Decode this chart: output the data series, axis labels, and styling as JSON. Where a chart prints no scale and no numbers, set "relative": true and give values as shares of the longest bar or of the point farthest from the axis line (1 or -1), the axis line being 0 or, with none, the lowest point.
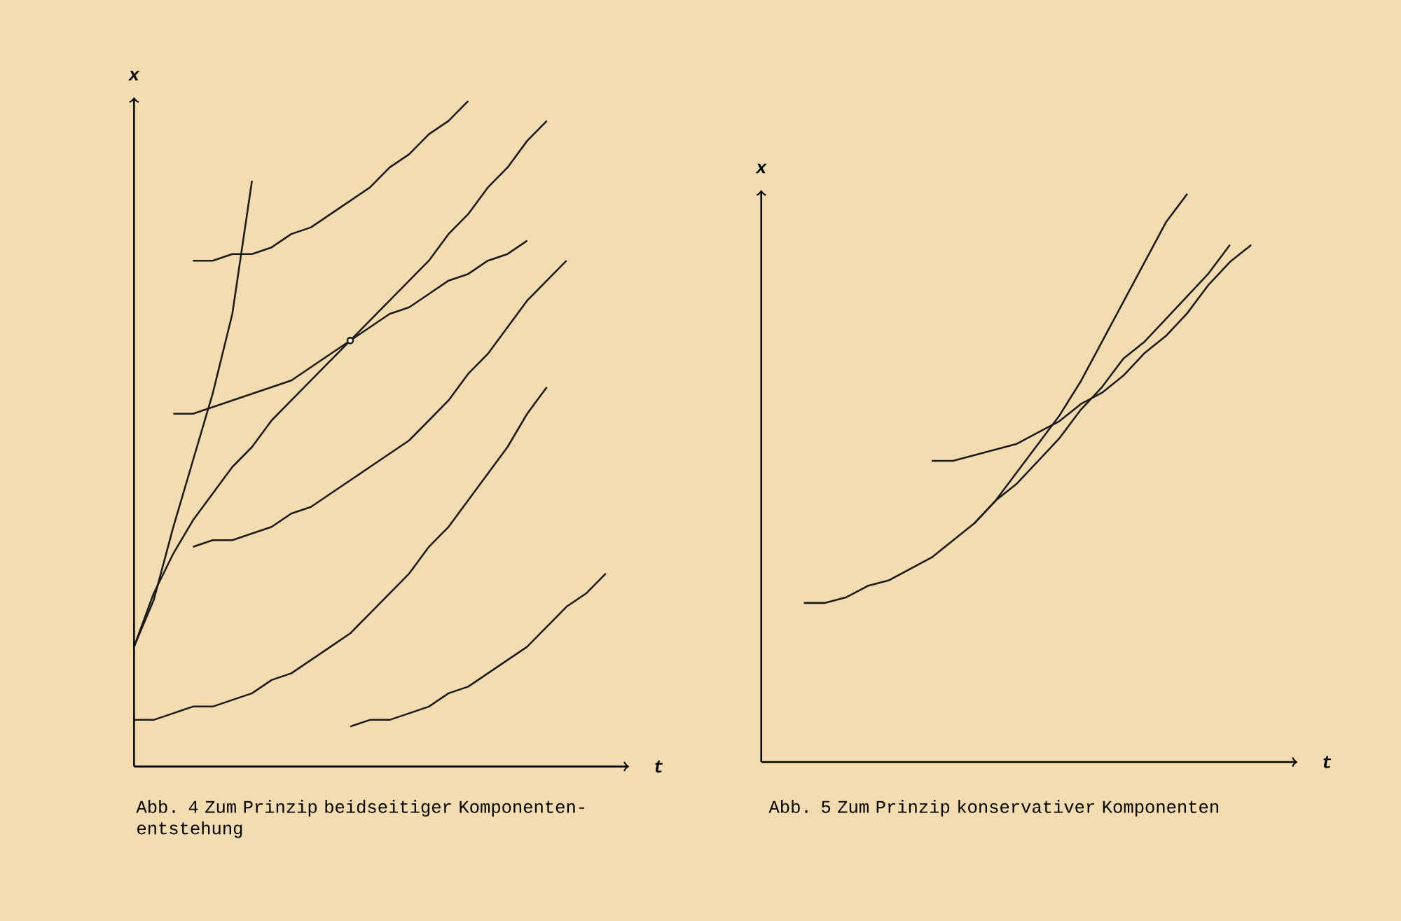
{
  "chart_data": [
    {
      "type": "line",
      "relative": true,
      "xlabel": "t",
      "ylabel": "x",
      "line_style": "solid",
      "annotations": [
        "Abb. 4  Zum Prinzip beidseitiger Komponenten-entstehung"
      ],
      "categories": [
        null,
        null,
        null,
        null,
        null,
        null,
        null,
        null,
        null,
        null,
        null,
        null,
        null,
        null,
        null,
        null,
        null,
        null,
        null,
        null,
        null,
        null,
        null,
        null,
        null,
        null
      ],
      "series": [
        {
          "color": "#1a1a1a",
          "values": [
            null,
            null,
            null,
            0.76,
            0.76,
            0.77,
            0.77,
            0.78,
            0.8,
            0.81,
            0.83,
            0.85,
            0.87,
            0.9,
            0.92,
            0.95,
            0.97,
            1.0,
            null,
            null,
            null,
            null,
            null,
            null,
            null,
            null
          ]
        },
        {
          "color": "#1a1a1a",
          "values": [
            0.18,
            0.25,
            0.36,
            0.46,
            0.56,
            0.68,
            0.88,
            null,
            null,
            null,
            null,
            null,
            null,
            null,
            null,
            null,
            null,
            null,
            null,
            null,
            null,
            null,
            null,
            null,
            null,
            null
          ]
        },
        {
          "color": "#1a1a1a",
          "values": [
            0.18,
            0.26,
            0.32,
            0.37,
            0.41,
            0.45,
            0.48,
            0.52,
            0.55,
            0.58,
            0.61,
            0.64,
            0.67,
            0.7,
            0.73,
            0.76,
            0.8,
            0.83,
            0.87,
            0.9,
            0.94,
            0.97,
            null,
            null,
            null,
            null
          ]
        },
        {
          "color": "#1a1a1a",
          "values": [
            null,
            null,
            0.53,
            0.53,
            0.54,
            0.55,
            0.56,
            0.57,
            0.58,
            0.6,
            0.62,
            0.64,
            0.66,
            0.68,
            0.69,
            0.71,
            0.73,
            0.74,
            0.76,
            0.77,
            0.79,
            null,
            null,
            null,
            null,
            null
          ]
        },
        {
          "marker": "circle",
          "color": "#1a1a1a",
          "values": [
            null,
            null,
            null,
            null,
            null,
            null,
            null,
            null,
            null,
            null,
            null,
            0.64,
            null,
            null,
            null,
            null,
            null,
            null,
            null,
            null,
            null,
            null,
            null,
            null,
            null,
            null
          ]
        },
        {
          "color": "#1a1a1a",
          "values": [
            null,
            null,
            null,
            0.33,
            0.34,
            0.34,
            0.35,
            0.36,
            0.38,
            0.39,
            0.41,
            0.43,
            0.45,
            0.47,
            0.49,
            0.52,
            0.55,
            0.59,
            0.62,
            0.66,
            0.7,
            0.73,
            0.76,
            null,
            null,
            null
          ]
        },
        {
          "color": "#1a1a1a",
          "values": [
            0.07,
            0.07,
            0.08,
            0.09,
            0.09,
            0.1,
            0.11,
            0.13,
            0.14,
            0.16,
            0.18,
            0.2,
            0.23,
            0.26,
            0.29,
            0.33,
            0.36,
            0.4,
            0.44,
            0.48,
            0.53,
            0.57,
            null,
            null,
            null,
            null
          ]
        },
        {
          "color": "#1a1a1a",
          "values": [
            null,
            null,
            null,
            null,
            null,
            null,
            null,
            null,
            null,
            null,
            null,
            0.06,
            0.07,
            0.07,
            0.08,
            0.09,
            0.11,
            0.12,
            0.14,
            0.16,
            0.18,
            0.21,
            0.24,
            0.26,
            0.29,
            null
          ]
        }
      ]
    },
    {
      "type": "line",
      "relative": true,
      "xlabel": "t",
      "ylabel": "x",
      "line_style": "solid",
      "annotations": [
        "Abb. 5  Zum Prinzip konservativer Komponenten"
      ],
      "categories": [
        null,
        null,
        null,
        null,
        null,
        null,
        null,
        null,
        null,
        null,
        null,
        null,
        null,
        null,
        null,
        null,
        null,
        null,
        null,
        null,
        null,
        null,
        null,
        null,
        null,
        null
      ],
      "series": [
        {
          "color": "#1a1a1a",
          "values": [
            null,
            null,
            0.28,
            0.28,
            0.29,
            0.31,
            0.32,
            0.34,
            0.36,
            0.39,
            0.42,
            0.46,
            0.49,
            0.53,
            0.57,
            0.62,
            0.66,
            0.71,
            0.74,
            0.78,
            0.82,
            0.86,
            0.91,
            null,
            null,
            null
          ]
        },
        {
          "color": "#1a1a1a",
          "values": [
            null,
            null,
            null,
            null,
            null,
            null,
            null,
            null,
            0.53,
            0.53,
            0.54,
            0.55,
            0.56,
            0.58,
            0.6,
            0.63,
            0.65,
            0.68,
            0.72,
            0.75,
            0.79,
            0.84,
            0.88,
            0.91,
            null,
            null
          ]
        },
        {
          "color": "#1a1a1a",
          "values": [
            null,
            null,
            null,
            null,
            null,
            null,
            null,
            null,
            null,
            null,
            0.42,
            0.46,
            0.51,
            0.56,
            0.61,
            0.67,
            0.74,
            0.81,
            0.88,
            0.95,
            1.0,
            null,
            null,
            null,
            null,
            null
          ]
        }
      ]
    }
  ]
}
